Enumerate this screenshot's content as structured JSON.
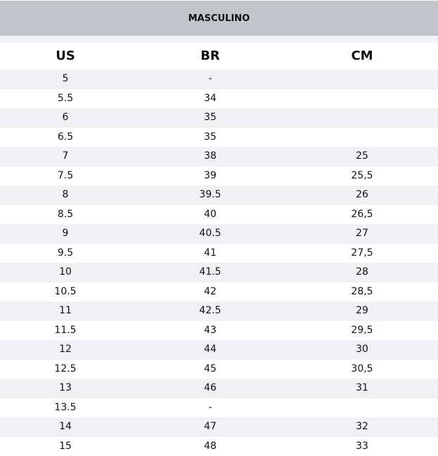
{
  "title": "MASCULINO",
  "columns": [
    "US",
    "BR",
    "CM"
  ],
  "rows": [
    [
      "5",
      "-",
      ""
    ],
    [
      "5.5",
      "34",
      ""
    ],
    [
      "6",
      "35",
      ""
    ],
    [
      "6.5",
      "35",
      ""
    ],
    [
      "7",
      "38",
      "25"
    ],
    [
      "7.5",
      "39",
      "25,5"
    ],
    [
      "8",
      "39.5",
      "26"
    ],
    [
      "8.5",
      "40",
      "26,5"
    ],
    [
      "9",
      "40.5",
      "27"
    ],
    [
      "9.5",
      "41",
      "27,5"
    ],
    [
      "10",
      "41.5",
      "28"
    ],
    [
      "10.5",
      "42",
      "28,5"
    ],
    [
      "11",
      "42.5",
      "29"
    ],
    [
      "11.5",
      "43",
      "29,5"
    ],
    [
      "12",
      "44",
      "30"
    ],
    [
      "12.5",
      "45",
      "30,5"
    ],
    [
      "13",
      "46",
      "31"
    ],
    [
      "13.5",
      "-",
      ""
    ],
    [
      "14",
      "47",
      "32"
    ],
    [
      "15",
      "48",
      "33"
    ]
  ]
}
